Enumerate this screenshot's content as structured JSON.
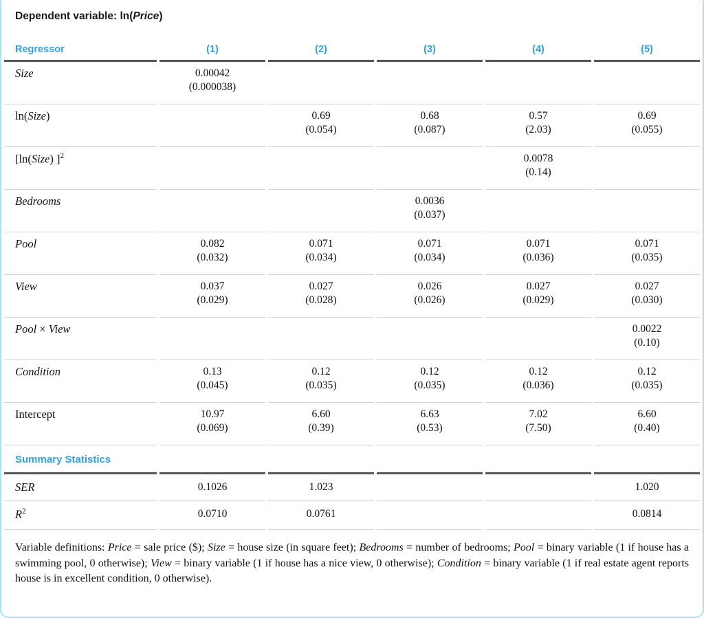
{
  "table": {
    "title_segments": [
      {
        "t": "Dependent variable: ln(",
        "s": "r"
      },
      {
        "t": "Price",
        "s": "i"
      },
      {
        "t": ")",
        "s": "r"
      }
    ],
    "header": {
      "regressor_label": "Regressor",
      "columns": [
        "(1)",
        "(2)",
        "(3)",
        "(4)",
        "(5)"
      ]
    },
    "rows": [
      {
        "label_segments": [
          {
            "t": "Size",
            "s": "i"
          }
        ],
        "cells": [
          {
            "coef": "0.00042",
            "se": "(0.000038)"
          },
          null,
          null,
          null,
          null
        ]
      },
      {
        "label_segments": [
          {
            "t": "ln(",
            "s": "r"
          },
          {
            "t": "Size",
            "s": "i"
          },
          {
            "t": ")",
            "s": "r"
          }
        ],
        "cells": [
          null,
          {
            "coef": "0.69",
            "se": "(0.054)"
          },
          {
            "coef": "0.68",
            "se": "(0.087)"
          },
          {
            "coef": "0.57",
            "se": "(2.03)"
          },
          {
            "coef": "0.69",
            "se": "(0.055)"
          }
        ]
      },
      {
        "label_segments": [
          {
            "t": "[ln(",
            "s": "r"
          },
          {
            "t": "Size",
            "s": "i"
          },
          {
            "t": ") ]",
            "s": "r"
          },
          {
            "t": "2",
            "s": "sup"
          }
        ],
        "cells": [
          null,
          null,
          null,
          {
            "coef": "0.0078",
            "se": "(0.14)"
          },
          null
        ]
      },
      {
        "label_segments": [
          {
            "t": "Bedrooms",
            "s": "i"
          }
        ],
        "cells": [
          null,
          null,
          {
            "coef": "0.0036",
            "se": "(0.037)"
          },
          null,
          null
        ]
      },
      {
        "label_segments": [
          {
            "t": "Pool",
            "s": "i"
          }
        ],
        "cells": [
          {
            "coef": "0.082",
            "se": "(0.032)"
          },
          {
            "coef": "0.071",
            "se": "(0.034)"
          },
          {
            "coef": "0.071",
            "se": "(0.034)"
          },
          {
            "coef": "0.071",
            "se": "(0.036)"
          },
          {
            "coef": "0.071",
            "se": "(0.035)"
          }
        ]
      },
      {
        "label_segments": [
          {
            "t": "View",
            "s": "i"
          }
        ],
        "cells": [
          {
            "coef": "0.037",
            "se": "(0.029)"
          },
          {
            "coef": "0.027",
            "se": "(0.028)"
          },
          {
            "coef": "0.026",
            "se": "(0.026)"
          },
          {
            "coef": "0.027",
            "se": "(0.029)"
          },
          {
            "coef": "0.027",
            "se": "(0.030)"
          }
        ]
      },
      {
        "label_segments": [
          {
            "t": "Pool",
            "s": "i"
          },
          {
            "t": " × ",
            "s": "r"
          },
          {
            "t": "View",
            "s": "i"
          }
        ],
        "cells": [
          null,
          null,
          null,
          null,
          {
            "coef": "0.0022",
            "se": "(0.10)"
          }
        ]
      },
      {
        "label_segments": [
          {
            "t": "Condition",
            "s": "i"
          }
        ],
        "cells": [
          {
            "coef": "0.13",
            "se": "(0.045)"
          },
          {
            "coef": "0.12",
            "se": "(0.035)"
          },
          {
            "coef": "0.12",
            "se": "(0.035)"
          },
          {
            "coef": "0.12",
            "se": "(0.036)"
          },
          {
            "coef": "0.12",
            "se": "(0.035)"
          }
        ]
      },
      {
        "label_segments": [
          {
            "t": "Intercept",
            "s": "r"
          }
        ],
        "cells": [
          {
            "coef": "10.97",
            "se": "(0.069)"
          },
          {
            "coef": "6.60",
            "se": "(0.39)"
          },
          {
            "coef": "6.63",
            "se": "(0.53)"
          },
          {
            "coef": "7.02",
            "se": "(7.50)"
          },
          {
            "coef": "6.60",
            "se": "(0.40)"
          }
        ]
      }
    ],
    "summary_heading": "Summary Statistics",
    "summary_rows": [
      {
        "label_segments": [
          {
            "t": "SER",
            "s": "i"
          }
        ],
        "cells": [
          "0.1026",
          "1.023",
          "",
          "",
          "1.020"
        ]
      },
      {
        "label_segments": [
          {
            "t": "R",
            "s": "i"
          },
          {
            "t": "2",
            "s": "sup"
          }
        ],
        "cells": [
          "0.0710",
          "0.0761",
          "",
          "",
          "0.0814"
        ]
      }
    ],
    "footnote_segments": [
      {
        "t": "Variable definitions: ",
        "s": "r"
      },
      {
        "t": "Price",
        "s": "i"
      },
      {
        "t": " = sale price ($); ",
        "s": "r"
      },
      {
        "t": "Size",
        "s": "i"
      },
      {
        "t": " = house size (in square feet); ",
        "s": "r"
      },
      {
        "t": "Bedrooms",
        "s": "i"
      },
      {
        "t": " = number of bedrooms; ",
        "s": "r"
      },
      {
        "t": "Pool",
        "s": "i"
      },
      {
        "t": " = binary variable (1 if house has a swimming pool, 0 otherwise); ",
        "s": "r"
      },
      {
        "t": "View",
        "s": "i"
      },
      {
        "t": " = binary variable (1 if house has a nice view, 0 otherwise); ",
        "s": "r"
      },
      {
        "t": "Condition",
        "s": "i"
      },
      {
        "t": " = binary variable (1 if real estate agent reports house is in excellent condition, 0 otherwise).",
        "s": "r"
      }
    ],
    "colors": {
      "accent_blue": "#2fa3dc",
      "frame_border_blue": "#aedcf0",
      "rule_dark": "#55565a",
      "rule_light": "#d2d2d2"
    }
  }
}
